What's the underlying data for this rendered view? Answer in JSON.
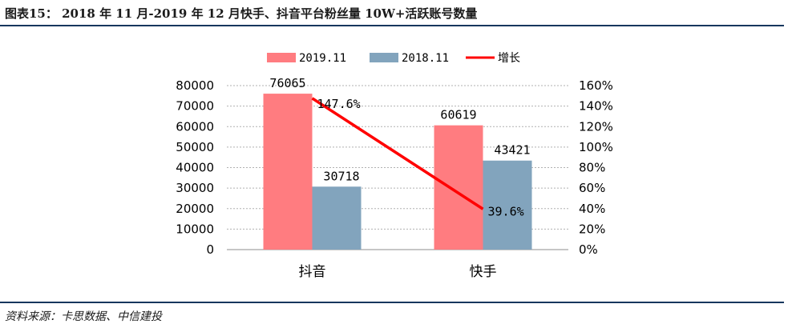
{
  "header": {
    "title": "图表15： 2018 年 11 月-2019 年 12 月快手、抖音平台粉丝量 10W+活跃账号数量"
  },
  "footer": {
    "source": "资料来源：卡思数据、中信建投"
  },
  "colors": {
    "rule": "#17375e",
    "series_2019": "#ff7c80",
    "series_2018": "#82a4bd",
    "growth_line": "#ff0000",
    "grid": "#b0b0b0"
  },
  "chart_data": {
    "type": "bar",
    "categories": [
      "抖音",
      "快手"
    ],
    "series": [
      {
        "name": "2019.11",
        "kind": "bar",
        "axis": "left",
        "values": [
          76065,
          60619
        ],
        "labels": [
          "76065",
          "60619"
        ]
      },
      {
        "name": "2018.11",
        "kind": "bar",
        "axis": "left",
        "values": [
          30718,
          43421
        ],
        "labels": [
          "30718",
          "43421"
        ]
      },
      {
        "name": "增长",
        "kind": "line",
        "axis": "right",
        "values": [
          147.6,
          39.6
        ],
        "labels": [
          "147.6%",
          "39.6%"
        ]
      }
    ],
    "y_left": {
      "min": 0,
      "max": 80000,
      "step": 10000,
      "ticks": [
        "0",
        "10000",
        "20000",
        "30000",
        "40000",
        "50000",
        "60000",
        "70000",
        "80000"
      ]
    },
    "y_right": {
      "min": 0,
      "max": 160,
      "step": 20,
      "ticks": [
        "0%",
        "20%",
        "40%",
        "60%",
        "80%",
        "100%",
        "120%",
        "140%",
        "160%"
      ]
    },
    "grid": "horizontal, dotted",
    "legend": "top-center"
  }
}
